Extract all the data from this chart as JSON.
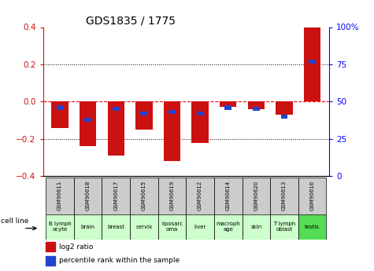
{
  "title": "GDS1835 / 1775",
  "samples": [
    "GSM90611",
    "GSM90618",
    "GSM90617",
    "GSM90615",
    "GSM90619",
    "GSM90612",
    "GSM90614",
    "GSM90620",
    "GSM90613",
    "GSM90616"
  ],
  "cell_lines": [
    "B lymph\nocyte",
    "brain",
    "breast",
    "cervix",
    "liposarc\noma",
    "liver",
    "macroph\nage",
    "skin",
    "T lymph\noblast",
    "testis"
  ],
  "log2_ratio": [
    -0.14,
    -0.24,
    -0.29,
    -0.15,
    -0.32,
    -0.22,
    -0.03,
    -0.04,
    -0.07,
    0.4
  ],
  "percentile_rank_mapped": [
    -0.032,
    -0.096,
    -0.04,
    -0.064,
    -0.056,
    -0.064,
    -0.032,
    -0.04,
    -0.08,
    0.216
  ],
  "bar_color_red": "#cc1111",
  "bar_color_blue": "#2244cc",
  "ylim_left": [
    -0.4,
    0.4
  ],
  "ylim_right": [
    0,
    100
  ],
  "yticks_left": [
    -0.4,
    -0.2,
    0.0,
    0.2,
    0.4
  ],
  "yticks_right": [
    0,
    25,
    50,
    75,
    100
  ],
  "ytick_labels_right": [
    "0",
    "25",
    "50",
    "75",
    "100%"
  ],
  "hline_values": [
    -0.2,
    0.0,
    0.2
  ],
  "xlabel": "cell line",
  "legend_log2": "log2 ratio",
  "legend_pct": "percentile rank within the sample",
  "bar_width": 0.6,
  "blue_bar_width": 0.25,
  "gsm_bg": "#cccccc",
  "cl_colors_light": "#ccffcc",
  "cl_colors_dark": "#55dd55",
  "cl_dark_indices": [
    9
  ]
}
